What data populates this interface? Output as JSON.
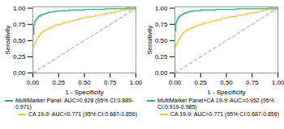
{
  "chart_data": [
    {
      "type": "line",
      "xlabel": "1 - Specificity",
      "ylabel": "Sensitivity",
      "xlim": [
        0.0,
        1.0
      ],
      "ylim": [
        0.0,
        1.02
      ],
      "xticks": [
        {
          "value": 0.0,
          "label": "0.00"
        },
        {
          "value": 0.25,
          "label": "0.25"
        },
        {
          "value": 0.5,
          "label": "0.50"
        },
        {
          "value": 0.75,
          "label": "0.75"
        },
        {
          "value": 1.0,
          "label": "1.00"
        }
      ],
      "yticks": [
        {
          "value": 0.0,
          "label": "0.00"
        },
        {
          "value": 0.25,
          "label": "0.25"
        },
        {
          "value": 0.5,
          "label": "0.50"
        },
        {
          "value": 0.75,
          "label": "0.75"
        },
        {
          "value": 1.0,
          "label": "1.00"
        }
      ],
      "grid": false,
      "legend": "lower right",
      "series": [
        {
          "type": "line",
          "line_style": "dashed",
          "color": "#BBBBBB",
          "x": [
            0,
            1
          ],
          "values": [
            0,
            1
          ]
        },
        {
          "name": "MultiMarker Panel: AUC=0.928 (95% CI:0.889-0.971)",
          "type": "step",
          "color": "#2EAA82",
          "x": [
            0.0,
            0.0,
            0.01,
            0.01,
            0.02,
            0.02,
            0.03,
            0.03,
            0.04,
            0.04,
            0.05,
            0.05,
            0.06,
            0.06,
            0.07,
            0.08,
            0.09,
            0.1,
            0.11,
            0.12,
            0.14,
            0.16,
            0.18,
            0.2,
            0.25,
            0.3,
            0.35,
            0.4,
            0.5,
            0.6,
            0.7,
            0.8,
            0.9,
            1.0
          ],
          "values": [
            0.0,
            0.6,
            0.6,
            0.75,
            0.75,
            0.8,
            0.8,
            0.83,
            0.83,
            0.85,
            0.85,
            0.87,
            0.87,
            0.88,
            0.88,
            0.9,
            0.9,
            0.91,
            0.91,
            0.92,
            0.93,
            0.94,
            0.94,
            0.95,
            0.96,
            0.96,
            0.97,
            0.97,
            0.98,
            0.98,
            0.99,
            0.99,
            1.0,
            1.0
          ]
        },
        {
          "name": "CA 19-9: AUC=0.771 (95% CI:0.687-0.856)",
          "type": "step",
          "color": "#E8C84A",
          "x": [
            0.0,
            0.0,
            0.01,
            0.02,
            0.03,
            0.04,
            0.05,
            0.06,
            0.07,
            0.08,
            0.09,
            0.1,
            0.12,
            0.14,
            0.16,
            0.18,
            0.2,
            0.22,
            0.25,
            0.28,
            0.3,
            0.35,
            0.4,
            0.45,
            0.5,
            0.55,
            0.6,
            0.65,
            0.7,
            0.75,
            0.8,
            0.85,
            0.9,
            1.0
          ],
          "values": [
            0.0,
            0.4,
            0.43,
            0.47,
            0.5,
            0.53,
            0.56,
            0.58,
            0.6,
            0.62,
            0.63,
            0.65,
            0.67,
            0.68,
            0.7,
            0.71,
            0.73,
            0.74,
            0.75,
            0.77,
            0.78,
            0.8,
            0.82,
            0.84,
            0.86,
            0.87,
            0.89,
            0.9,
            0.92,
            0.93,
            0.95,
            0.97,
            0.98,
            1.0
          ]
        }
      ]
    },
    {
      "type": "line",
      "xlabel": "1 - Specificity",
      "ylabel": "Sensitivity",
      "xlim": [
        0.0,
        1.0
      ],
      "ylim": [
        0.0,
        1.02
      ],
      "xticks": [
        {
          "value": 0.0,
          "label": "0.00"
        },
        {
          "value": 0.25,
          "label": "0.25"
        },
        {
          "value": 0.5,
          "label": "0.50"
        },
        {
          "value": 0.75,
          "label": "0.75"
        },
        {
          "value": 1.0,
          "label": "1.00"
        }
      ],
      "yticks": [
        {
          "value": 0.0,
          "label": "0.00"
        },
        {
          "value": 0.25,
          "label": "0.25"
        },
        {
          "value": 0.5,
          "label": "0.50"
        },
        {
          "value": 0.75,
          "label": "0.75"
        },
        {
          "value": 1.0,
          "label": "1.00"
        }
      ],
      "grid": false,
      "legend": "lower right",
      "series": [
        {
          "type": "line",
          "line_style": "dashed",
          "color": "#BBBBBB",
          "x": [
            0,
            1
          ],
          "values": [
            0,
            1
          ]
        },
        {
          "name": "MultiMarker Panel+CA 19-9: AUC=0.952 (95% CI:0.919-0.985)",
          "type": "step",
          "color": "#2EAA82",
          "x": [
            0.0,
            0.0,
            0.01,
            0.01,
            0.02,
            0.02,
            0.03,
            0.03,
            0.04,
            0.04,
            0.05,
            0.05,
            0.06,
            0.07,
            0.08,
            0.09,
            0.1,
            0.12,
            0.14,
            0.16,
            0.18,
            0.2,
            0.25,
            0.3,
            0.4,
            0.5,
            0.6,
            0.7,
            0.8,
            0.9,
            1.0
          ],
          "values": [
            0.0,
            0.65,
            0.65,
            0.78,
            0.78,
            0.82,
            0.82,
            0.85,
            0.85,
            0.87,
            0.87,
            0.89,
            0.89,
            0.9,
            0.91,
            0.92,
            0.93,
            0.94,
            0.95,
            0.95,
            0.96,
            0.96,
            0.97,
            0.97,
            0.98,
            0.98,
            0.99,
            0.99,
            0.99,
            1.0,
            1.0
          ]
        },
        {
          "name": "CA 19-9: AUC=0.771 (95% CI:0.687-0.856)",
          "type": "step",
          "color": "#E8C84A",
          "x": [
            0.0,
            0.0,
            0.01,
            0.02,
            0.03,
            0.04,
            0.05,
            0.06,
            0.07,
            0.08,
            0.09,
            0.1,
            0.12,
            0.14,
            0.16,
            0.18,
            0.2,
            0.22,
            0.25,
            0.28,
            0.3,
            0.35,
            0.4,
            0.45,
            0.5,
            0.55,
            0.6,
            0.65,
            0.7,
            0.75,
            0.8,
            0.85,
            0.9,
            1.0
          ],
          "values": [
            0.0,
            0.4,
            0.43,
            0.47,
            0.5,
            0.53,
            0.56,
            0.58,
            0.6,
            0.62,
            0.63,
            0.65,
            0.67,
            0.68,
            0.7,
            0.71,
            0.73,
            0.74,
            0.75,
            0.77,
            0.78,
            0.8,
            0.82,
            0.84,
            0.86,
            0.87,
            0.89,
            0.9,
            0.92,
            0.93,
            0.95,
            0.97,
            0.98,
            1.0
          ]
        }
      ]
    }
  ]
}
